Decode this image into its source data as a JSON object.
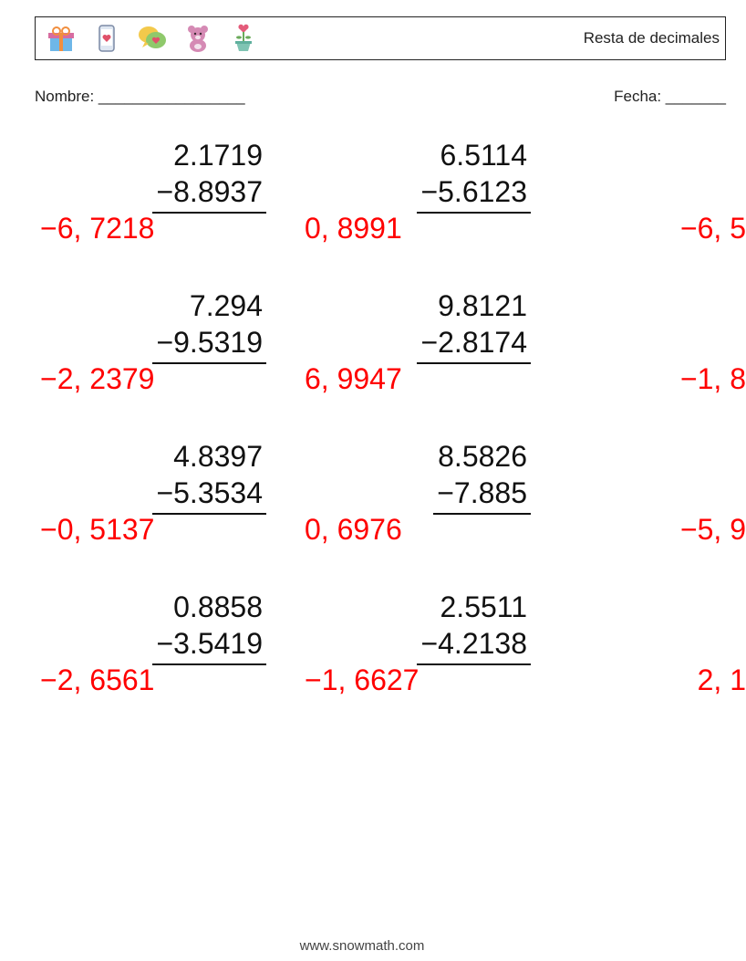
{
  "header": {
    "title": "Resta de decimales",
    "icons": [
      "gift-icon",
      "phone-heart-icon",
      "speech-heart-icon",
      "teddy-icon",
      "flower-pot-icon"
    ],
    "icon_colors": {
      "gift": {
        "box": "#6fb7e8",
        "lid": "#d76ca0",
        "ribbon": "#f18e3e"
      },
      "phone": {
        "body": "#dfe7f2",
        "screen": "#fff",
        "heart": "#e0516a"
      },
      "speech": {
        "back": "#f3c94b",
        "front": "#8fc96b",
        "heart": "#e0516a"
      },
      "teddy": "#d58ab4",
      "flower": {
        "pot": "#7fc4b3",
        "stem": "#6aaa5a",
        "heart": "#e45b7a"
      }
    }
  },
  "meta": {
    "name_label": "Nombre: _________________",
    "date_label": "Fecha: _______"
  },
  "problems": [
    [
      {
        "minuend": "2.1719",
        "subtrahend": "−8.8937",
        "answer": "−6, 7218"
      },
      {
        "minuend": "6.5114",
        "subtrahend": "−5.6123",
        "answer": "0, 8991"
      },
      {
        "minuend": "",
        "subtrahend": "",
        "answer": "−6, 5"
      }
    ],
    [
      {
        "minuend": "7.294",
        "subtrahend": "−9.5319",
        "answer": "−2, 2379"
      },
      {
        "minuend": "9.8121",
        "subtrahend": "−2.8174",
        "answer": "6, 9947"
      },
      {
        "minuend": "",
        "subtrahend": "",
        "answer": "−1, 8"
      }
    ],
    [
      {
        "minuend": "4.8397",
        "subtrahend": "−5.3534",
        "answer": "−0, 5137"
      },
      {
        "minuend": "8.5826",
        "subtrahend": "−7.885",
        "answer": "0, 6976"
      },
      {
        "minuend": "",
        "subtrahend": "",
        "answer": "−5, 9"
      }
    ],
    [
      {
        "minuend": "0.8858",
        "subtrahend": "−3.5419",
        "answer": "−2, 6561"
      },
      {
        "minuend": "2.5511",
        "subtrahend": "−4.2138",
        "answer": "−1, 6627"
      },
      {
        "minuend": "",
        "subtrahend": "",
        "answer": "2, 1"
      }
    ]
  ],
  "footer": "www.snowmath.com"
}
